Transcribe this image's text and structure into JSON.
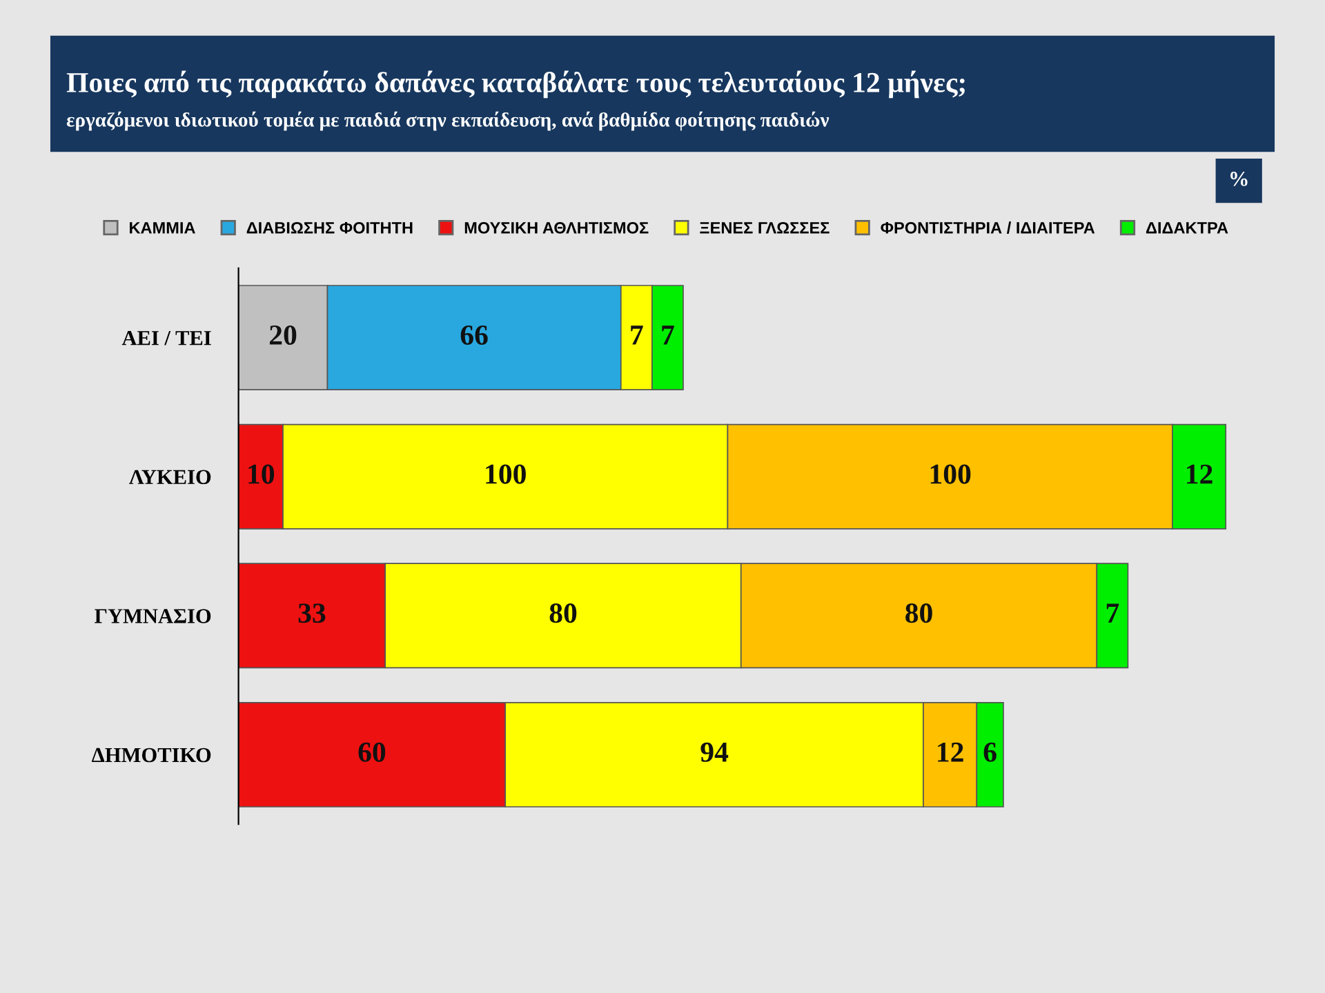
{
  "chart_data": {
    "type": "bar",
    "orientation": "horizontal",
    "stacked": true,
    "data_labels": true,
    "legend": "top",
    "grid": false,
    "title": "Ποιες από τις παρακάτω δαπάνες καταβάλατε τους τελευταίους 12 μήνες;",
    "subtitle": "εργαζόμενοι ιδιωτικού τομέα με παιδιά στην εκπαίδευση, ανά βαθμίδα φοίτησης παιδιών",
    "annotations": [
      "%"
    ],
    "categories": [
      "ΑΕΙ / ΤΕΙ",
      "ΛΥΚΕΙΟ",
      "ΓΥΜΝΑΣΙΟ",
      "ΔΗΜΟΤΙΚΟ"
    ],
    "series": [
      {
        "name": "ΚΑΜΜΙΑ",
        "color": "#c0c0c0",
        "values": [
          20,
          null,
          null,
          null
        ]
      },
      {
        "name": "ΔΙΑΒΙΩΣΗΣ ΦΟΙΤΗΤΗ",
        "color": "#29a8e0",
        "values": [
          66,
          null,
          null,
          null
        ]
      },
      {
        "name": "ΜΟΥΣΙΚΗ ΑΘΛΗΤΙΣΜΟΣ",
        "color": "#ee1111",
        "values": [
          null,
          10,
          33,
          60
        ]
      },
      {
        "name": "ΞΕΝΕΣ ΓΛΩΣΣΕΣ",
        "color": "#ffff00",
        "values": [
          7,
          100,
          80,
          94
        ]
      },
      {
        "name": "ΦΡΟΝΤΙΣΤΗΡΙΑ / ΙΔΙΑΙΤΕΡΑ",
        "color": "#ffc000",
        "values": [
          null,
          100,
          80,
          12
        ]
      },
      {
        "name": "ΔΙΔΑΚΤΡΑ",
        "color": "#00ee00",
        "values": [
          7,
          12,
          7,
          6
        ]
      }
    ]
  }
}
